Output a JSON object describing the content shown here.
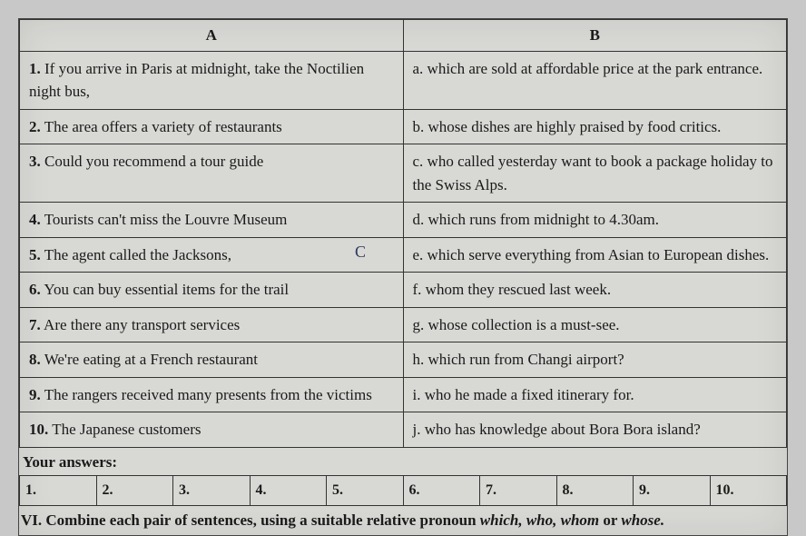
{
  "headers": {
    "colA": "A",
    "colB": "B"
  },
  "rows": [
    {
      "a_num": "1.",
      "a_text": " If you arrive in Paris at midnight, take the Noctilien night bus,",
      "b_label": "a.",
      "b_text": " which are sold at affordable price at the park entrance."
    },
    {
      "a_num": "2.",
      "a_text": " The area offers a variety of restaurants",
      "b_label": "b.",
      "b_text": " whose dishes are highly praised by food critics."
    },
    {
      "a_num": "3.",
      "a_text": " Could you recommend a tour guide",
      "b_label": "c.",
      "b_text": " who called yesterday want to book a package holiday to the Swiss Alps."
    },
    {
      "a_num": "4.",
      "a_text": " Tourists can't miss the Louvre Museum",
      "b_label": "d.",
      "b_text": " which runs from midnight to 4.30am."
    },
    {
      "a_num": "5.",
      "a_text": " The agent called the Jacksons,",
      "b_label": "e.",
      "b_text": " which serve everything from Asian to European dishes."
    },
    {
      "a_num": "6.",
      "a_text": " You can buy essential items for the trail",
      "b_label": "f.",
      "b_text": " whom they rescued last week."
    },
    {
      "a_num": "7.",
      "a_text": " Are there any transport services",
      "b_label": "g.",
      "b_text": " whose collection is a must-see."
    },
    {
      "a_num": "8.",
      "a_text": " We're eating at a French restaurant",
      "b_label": "h.",
      "b_text": " which run from Changi airport?"
    },
    {
      "a_num": "9.",
      "a_text": " The rangers received many presents from the victims",
      "b_label": "i.",
      "b_text": " who he made a fixed itinerary for."
    },
    {
      "a_num": "10.",
      "a_text": " The Japanese customers",
      "b_label": "j.",
      "b_text": " who has knowledge about Bora Bora island?"
    }
  ],
  "answers_label": "Your answers:",
  "answer_nums": [
    "1.",
    "2.",
    "3.",
    "4.",
    "5.",
    "6.",
    "7.",
    "8.",
    "9.",
    "10."
  ],
  "instruction": {
    "section": "VI.",
    "text": " Combine each pair of sentences, using a suitable relative pronoun ",
    "italics": "which, who, whom",
    "or": " or ",
    "last_italic": "whose."
  },
  "annotation": "C",
  "colors": {
    "paper_bg": "#d8d8d5",
    "border": "#333333",
    "text": "#1a1a1a"
  }
}
